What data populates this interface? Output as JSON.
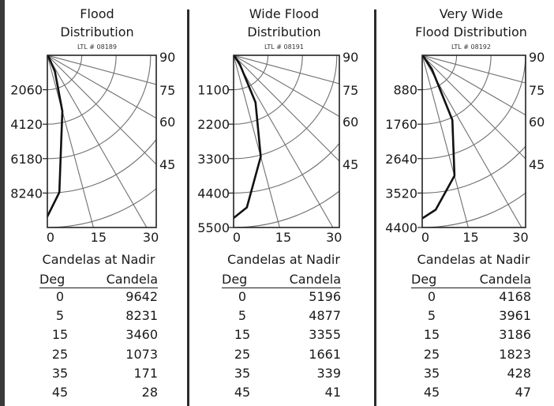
{
  "panels": [
    {
      "title_lines": [
        "Flood",
        "Distribution"
      ],
      "ltl": "LTL # 08189",
      "candela_ticks": [
        "2060",
        "4120",
        "6180",
        "8240"
      ],
      "x_ticks": [
        "0",
        "15",
        "30"
      ],
      "angle_ticks": [
        "90",
        "75",
        "60",
        "45"
      ],
      "caption": "Candelas at Nadir",
      "table_headers": [
        "Deg",
        "Candela"
      ],
      "rows": [
        [
          "0",
          "9642"
        ],
        [
          "5",
          "8231"
        ],
        [
          "15",
          "3460"
        ],
        [
          "25",
          "1073"
        ],
        [
          "35",
          "171"
        ],
        [
          "45",
          "28"
        ]
      ]
    },
    {
      "title_lines": [
        "Wide Flood",
        "Distribution"
      ],
      "ltl": "LTL # 08191",
      "candela_ticks": [
        "1100",
        "2200",
        "3300",
        "4400",
        "5500"
      ],
      "x_ticks": [
        "0",
        "15",
        "30"
      ],
      "angle_ticks": [
        "90",
        "75",
        "60",
        "45"
      ],
      "caption": "Candelas at Nadir",
      "table_headers": [
        "Deg",
        "Candela"
      ],
      "rows": [
        [
          "0",
          "5196"
        ],
        [
          "5",
          "4877"
        ],
        [
          "15",
          "3355"
        ],
        [
          "25",
          "1661"
        ],
        [
          "35",
          "339"
        ],
        [
          "45",
          "41"
        ]
      ]
    },
    {
      "title_lines": [
        "Very Wide",
        "Flood Distribution"
      ],
      "ltl": "LTL # 08192",
      "candela_ticks": [
        "880",
        "1760",
        "2640",
        "3520",
        "4400"
      ],
      "x_ticks": [
        "0",
        "15",
        "30"
      ],
      "angle_ticks": [
        "90",
        "75",
        "60",
        "45"
      ],
      "caption": "Candelas at Nadir",
      "table_headers": [
        "Deg",
        "Candela"
      ],
      "rows": [
        [
          "0",
          "4168"
        ],
        [
          "5",
          "3961"
        ],
        [
          "15",
          "3186"
        ],
        [
          "25",
          "1823"
        ],
        [
          "35",
          "428"
        ],
        [
          "45",
          "47"
        ]
      ]
    }
  ],
  "chart_data": [
    {
      "type": "polar",
      "title": "Flood Distribution",
      "angle_unit": "deg",
      "angle_labels": [
        90,
        75,
        60,
        45
      ],
      "radial_ticks": [
        2060,
        4120,
        6180,
        8240
      ],
      "rmax": 10300,
      "series": [
        {
          "points": [
            [
              0,
              9642
            ],
            [
              5,
              8231
            ],
            [
              15,
              3460
            ],
            [
              25,
              1073
            ],
            [
              35,
              171
            ],
            [
              45,
              28
            ]
          ]
        }
      ]
    },
    {
      "type": "polar",
      "title": "Wide Flood Distribution",
      "angle_unit": "deg",
      "angle_labels": [
        90,
        75,
        60,
        45
      ],
      "radial_ticks": [
        1100,
        2200,
        3300,
        4400,
        5500
      ],
      "rmax": 5500,
      "series": [
        {
          "points": [
            [
              0,
              5196
            ],
            [
              5,
              4877
            ],
            [
              15,
              3355
            ],
            [
              25,
              1661
            ],
            [
              35,
              339
            ],
            [
              45,
              41
            ]
          ]
        }
      ]
    },
    {
      "type": "polar",
      "title": "Very Wide Flood Distribution",
      "angle_unit": "deg",
      "angle_labels": [
        90,
        75,
        60,
        45
      ],
      "radial_ticks": [
        880,
        1760,
        2640,
        3520,
        4400
      ],
      "rmax": 4400,
      "series": [
        {
          "points": [
            [
              0,
              4168
            ],
            [
              5,
              3961
            ],
            [
              15,
              3186
            ],
            [
              25,
              1823
            ],
            [
              35,
              428
            ],
            [
              45,
              47
            ]
          ]
        }
      ]
    }
  ]
}
